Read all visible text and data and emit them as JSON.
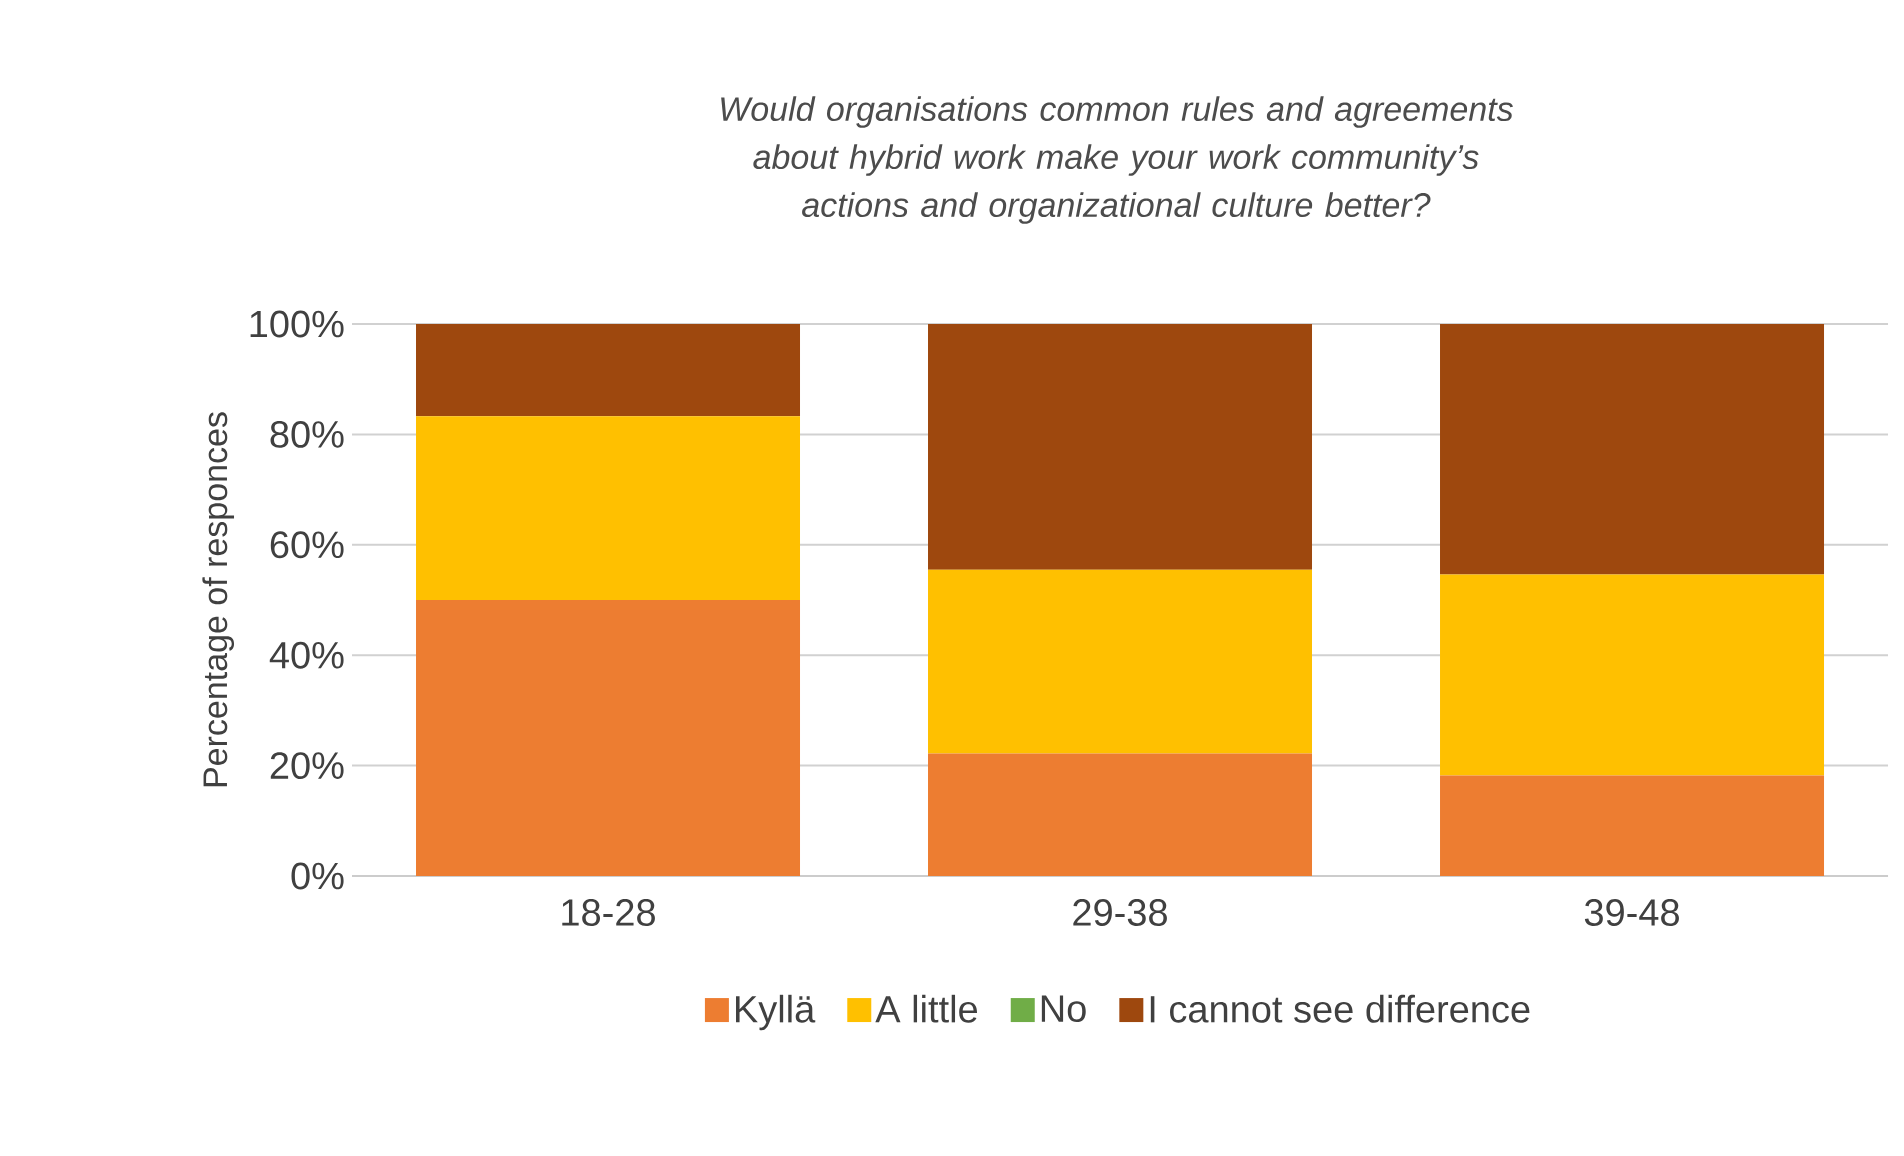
{
  "chart_data": {
    "type": "bar",
    "stacked": true,
    "title": "Would organisations common rules and agreements about hybrid work make your work community’s actions and organizational culture better?",
    "ylabel": "Percentage of responces",
    "categories": [
      "18-28",
      "29-38",
      "39-48"
    ],
    "series": [
      {
        "name": "Kyllä",
        "color": "#ed7d31",
        "values": [
          50,
          22.2,
          18.2
        ]
      },
      {
        "name": "A little",
        "color": "#ffc000",
        "values": [
          33.3,
          33.3,
          36.4
        ]
      },
      {
        "name": "No",
        "color": "#70ad47",
        "values": [
          0,
          0,
          0
        ]
      },
      {
        "name": "I cannot see difference",
        "color": "#9e480e",
        "values": [
          16.7,
          44.5,
          45.4
        ]
      }
    ],
    "ylim": [
      0,
      100
    ],
    "yticks": [
      {
        "value": 0,
        "label": "0%"
      },
      {
        "value": 20,
        "label": "20%"
      },
      {
        "value": 40,
        "label": "40%"
      },
      {
        "value": 60,
        "label": "60%"
      },
      {
        "value": 80,
        "label": "80%"
      },
      {
        "value": 100,
        "label": "100%"
      }
    ],
    "grid": "y",
    "legend": "bottom"
  }
}
